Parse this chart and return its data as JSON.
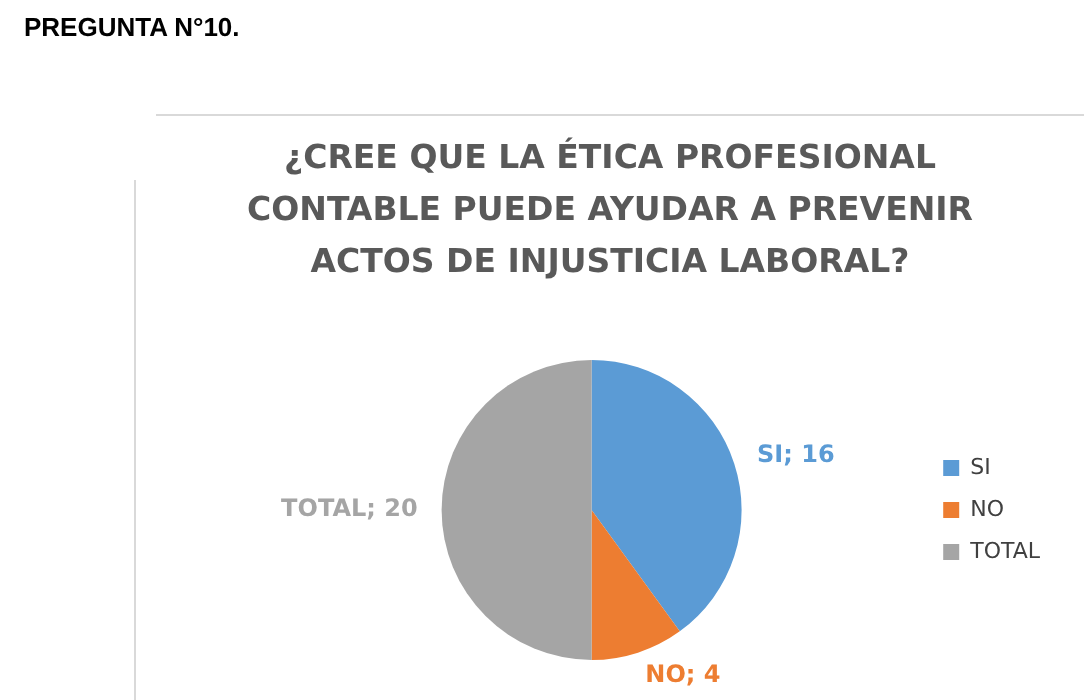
{
  "chart_data": {
    "type": "pie",
    "title": "¿CREE QUE LA ÉTICA PROFESIONAL CONTABLE PUEDE AYUDAR A PREVENIR ACTOS DE INJUSTICIA LABORAL?",
    "annotations": [
      "PREGUNTA N°10."
    ],
    "categories": [
      "SI",
      "NO",
      "TOTAL"
    ],
    "values": [
      16,
      4,
      20
    ],
    "colors": [
      "#5b9bd5",
      "#ed7d31",
      "#a5a5a5"
    ],
    "value_labels": [
      "SI; 16",
      "NO; 4",
      "TOTAL; 20"
    ],
    "legend": "right"
  }
}
